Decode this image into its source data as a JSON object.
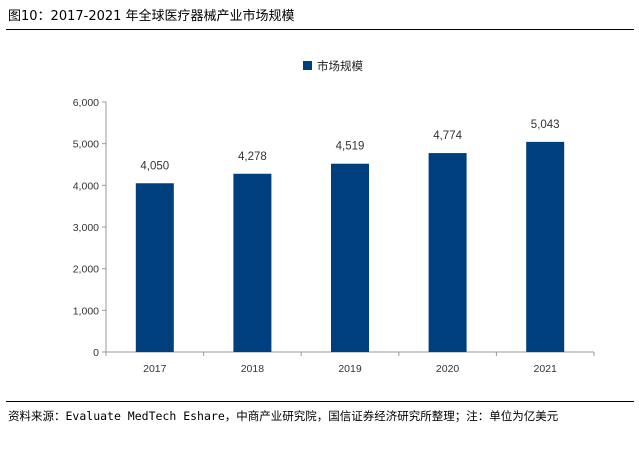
{
  "figure": {
    "title": "图10：2017-2021 年全球医疗器械产业市场规模",
    "source": "资料来源：Evaluate MedTech Eshare，中商产业研究院，国信证券经济研究所整理；注：单位为亿美元"
  },
  "chart_data": {
    "type": "bar",
    "categories": [
      "2017",
      "2018",
      "2019",
      "2020",
      "2021"
    ],
    "series": [
      {
        "name": "市场规模",
        "values": [
          4050,
          4278,
          4519,
          4774,
          5043
        ],
        "color": "#003f7d"
      }
    ],
    "data_labels": [
      "4,050",
      "4,278",
      "4,519",
      "4,774",
      "5,043"
    ],
    "y_ticks": [
      0,
      1000,
      2000,
      3000,
      4000,
      5000,
      6000
    ],
    "y_tick_labels": [
      "0",
      "1,000",
      "2,000",
      "3,000",
      "4,000",
      "5,000",
      "6,000"
    ],
    "ylim": [
      0,
      6000
    ],
    "legend_position": "top",
    "grid": false,
    "axis_color": "#999999"
  }
}
